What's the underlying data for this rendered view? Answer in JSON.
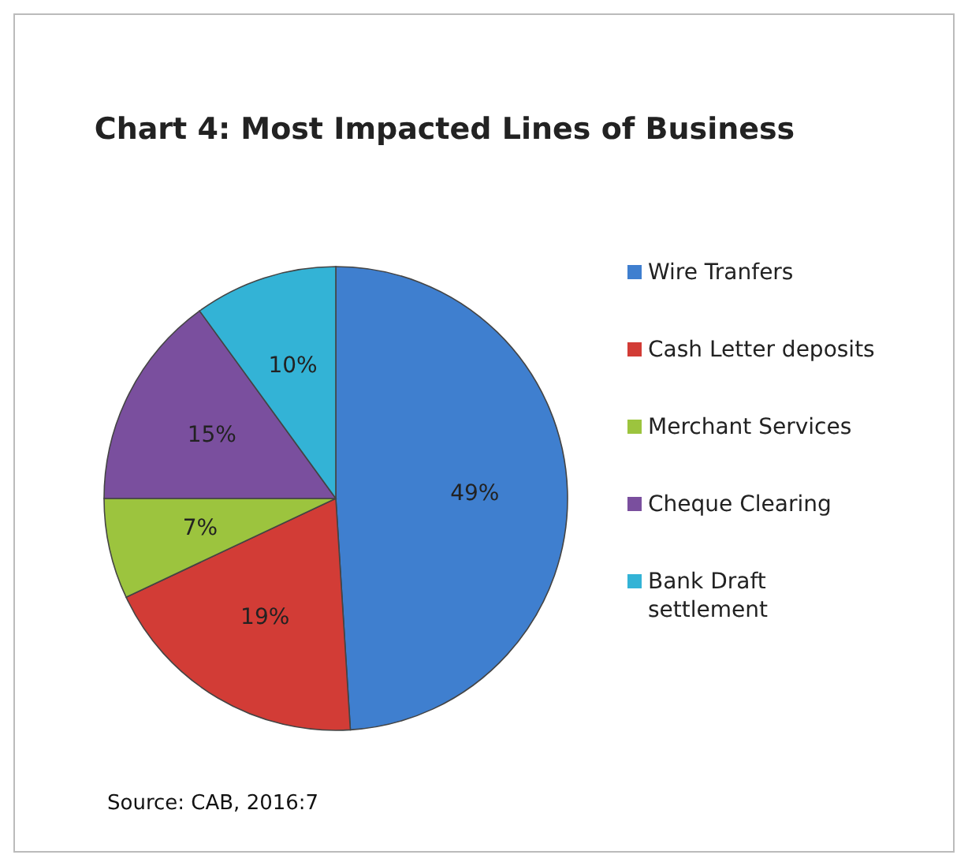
{
  "chart_data": {
    "type": "pie",
    "title": "Chart 4: Most Impacted Lines of Business",
    "categories": [
      "Wire Tranfers",
      "Cash Letter deposits",
      "Merchant Services",
      "Cheque Clearing",
      "Bank Draft settlement"
    ],
    "values": [
      49,
      19,
      7,
      15,
      10
    ],
    "value_labels": [
      "49%",
      "19%",
      "7%",
      "15%",
      "10%"
    ],
    "colors": [
      "#3f7fcf",
      "#d23c36",
      "#9cc43e",
      "#7a4f9e",
      "#33b3d6"
    ],
    "legend": "right",
    "annotations": [
      "Source: CAB, 2016:7"
    ]
  }
}
